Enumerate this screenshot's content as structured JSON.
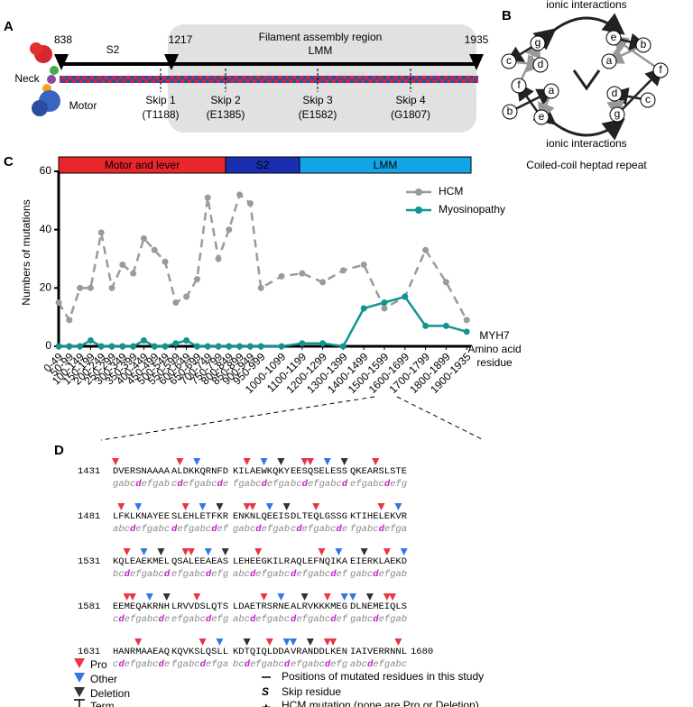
{
  "panel_a": {
    "label": "A",
    "region": "Filament assembly region",
    "lmm": "LMM",
    "s2": "S2",
    "positions": [
      "838",
      "1217",
      "1935"
    ],
    "neck": "Neck",
    "motor": "Motor",
    "skips": [
      {
        "name": "Skip 1",
        "residue": "(T1188)"
      },
      {
        "name": "Skip 2",
        "residue": "(E1385)"
      },
      {
        "name": "Skip 3",
        "residue": "(E1582)"
      },
      {
        "name": "Skip 4",
        "residue": "(G1807)"
      }
    ]
  },
  "panel_b": {
    "label": "B",
    "ionic_top": "ionic interactions",
    "ionic_bottom": "ionic interactions",
    "caption": "Coiled-coil heptad repeat",
    "left": [
      "g",
      "c",
      "d",
      "f",
      "a",
      "b",
      "e"
    ],
    "right": [
      "e",
      "b",
      "a",
      "f",
      "d",
      "c",
      "g"
    ]
  },
  "panel_c": {
    "label": "C",
    "domains": [
      "Motor and lever",
      "S2",
      "LMM"
    ]
  },
  "chart_data": {
    "type": "line",
    "y_label": "Numbers of mutations",
    "x_label": [
      "MYH7",
      "Amino acid",
      "residue"
    ],
    "categories": [
      "0-49",
      "50-99",
      "100-149",
      "150-199",
      "200-249",
      "250-299",
      "300-349",
      "350-399",
      "400-449",
      "450-499",
      "500-549",
      "550-599",
      "600-649",
      "650-699",
      "700-749",
      "750-799",
      "800-849",
      "850-899",
      "900-949",
      "950-999",
      "1000-1099",
      "1100-1199",
      "1200-1299",
      "1300-1399",
      "1400-1499",
      "1500-1599",
      "1600-1699",
      "1700-1799",
      "1800-1899",
      "1900-1935"
    ],
    "series": [
      {
        "name": "HCM",
        "color": "#9a9a9a",
        "values": [
          15,
          9,
          20,
          20,
          39,
          20,
          28,
          25,
          37,
          33,
          29,
          15,
          17,
          23,
          51,
          30,
          40,
          52,
          49,
          20,
          24,
          25,
          22,
          26,
          28,
          13,
          17,
          33,
          22,
          9
        ]
      },
      {
        "name": "Myosinopathy",
        "color": "#14948e",
        "values": [
          0,
          0,
          0,
          2,
          0,
          0,
          0,
          0,
          2,
          0,
          0,
          1,
          2,
          0,
          0,
          0,
          0,
          0,
          0,
          0,
          0,
          1,
          1,
          0,
          13,
          15,
          17,
          7,
          7,
          5
        ]
      }
    ],
    "ylim": [
      0,
      60
    ],
    "yticks": [
      0,
      20,
      40,
      60
    ],
    "legend": "upper right"
  },
  "panel_d": {
    "label": "D",
    "rows": [
      {
        "start": "1431",
        "seq": [
          "DVERSNAAAA",
          "ALDKKQRNFD",
          "KILAEWKQKY",
          "EESQSELESS",
          "QKEARSLSTE"
        ],
        "heptad": [
          "gabcdefgab",
          "cdefgabcde",
          "fgabcdefga",
          "bcdefgabcd",
          "efgabcdefg"
        ]
      },
      {
        "start": "1481",
        "seq": [
          "LFKLKNAYEE",
          "SLEHLETFKR",
          "ENKNLQEEIS",
          "DLTEQLGSSG",
          "KTIHELEKVR"
        ],
        "heptad": [
          "abcdefgabc",
          "defgabcdef",
          "gabcdefgab",
          "cdefgabcde",
          "fgabcdefga"
        ]
      },
      {
        "start": "1531",
        "seq": [
          "KQLEAEKMEL",
          "QSALEEAEAS",
          "LEHEEGKILR",
          "AQLEFNQIKA",
          "EIERKLAEKD"
        ],
        "heptad": [
          "bcdefgabcd",
          "efgabcdefg",
          "abcdefgabc",
          "defgabcdef",
          "gabcdefgab"
        ]
      },
      {
        "start": "1581",
        "seq": [
          "EEMEQAKRNH",
          "LRVVDSLQTS",
          "LDAETRSRNE",
          "ALRVKKKMEG",
          "DLNEMEIQLS"
        ],
        "heptad": [
          "cdefgabcde",
          "efgabcdefg",
          "abcdefgabc",
          "defgabcdef",
          "gabcdefgab"
        ]
      },
      {
        "start": "1631",
        "seq": [
          "HANRMAAEAQ",
          "KQVKSLQSLL",
          "KDTQIQLDDA",
          "VRANDDLKEN",
          "IAIVERRNNL"
        ],
        "heptad": [
          "cdefgabcde",
          "fgabcdefga",
          "bcdefgabcd",
          "efgabcdefg",
          "abcdefgabc"
        ],
        "end": "1680"
      }
    ],
    "legend": {
      "pro": "Pro",
      "other": "Other",
      "deletion": "Deletion",
      "term": "Term",
      "positions": "Positions of mutated residues in this study",
      "skip_symbol": "S",
      "skip": "Skip residue",
      "hcm": "HCM mutation (none are Pro or Deletion)"
    }
  }
}
